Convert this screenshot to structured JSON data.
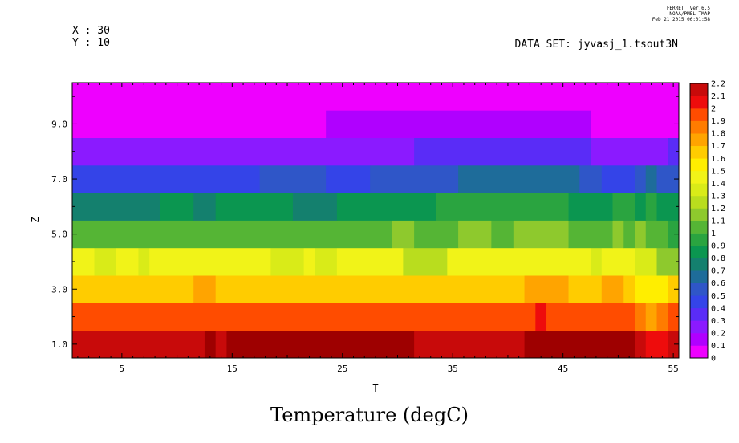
{
  "header": {
    "x_info": "X : 30",
    "y_info": "Y : 10",
    "dataset": "DATA SET: jyvasj_1.tsout3N",
    "ferret_version": "FERRET  Ver.6.5",
    "ferret_org": "NOAA/PMEL TMAP",
    "ferret_date": "Feb 21 2015 06:01:58"
  },
  "chart_data": {
    "type": "heatmap",
    "title": "Temperature (degC)",
    "xlabel": "T",
    "ylabel": "Z",
    "xlim": [
      0.5,
      55.5
    ],
    "ylim": [
      0.5,
      10.5
    ],
    "x_ticks_major": [
      "5",
      "15",
      "25",
      "35",
      "45",
      "55"
    ],
    "y_ticks_major": [
      "1.0",
      "3.0",
      "5.0",
      "7.0",
      "9.0"
    ],
    "colorbar": {
      "labels": [
        "0",
        "0.1",
        "0.2",
        "0.3",
        "0.4",
        "0.5",
        "0.6",
        "0.7",
        "0.8",
        "0.9",
        "1",
        "1.1",
        "1.2",
        "1.3",
        "1.4",
        "1.5",
        "1.6",
        "1.7",
        "1.8",
        "1.9",
        "2",
        "2.1",
        "2.2"
      ],
      "colors": [
        "#ee00ff",
        "#b000ff",
        "#8b1aff",
        "#5a2cf7",
        "#3444e8",
        "#2f56c8",
        "#1e6c9a",
        "#14806e",
        "#0b9650",
        "#2aa440",
        "#55b535",
        "#8ec92d",
        "#b9dd1e",
        "#d9eb18",
        "#f1f318",
        "#ffee00",
        "#ffcc00",
        "#ffa400",
        "#ff7c00",
        "#ff4c00",
        "#ee0c0c",
        "#c80a0a",
        "#9e0000"
      ]
    },
    "rows": [
      {
        "z": 1,
        "segments": [
          [
            0.5,
            12.5,
            2.15
          ],
          [
            12.5,
            13.5,
            2.25
          ],
          [
            13.5,
            14.5,
            2.15
          ],
          [
            14.5,
            31.5,
            2.25
          ],
          [
            31.5,
            41.5,
            2.15
          ],
          [
            41.5,
            51.5,
            2.25
          ],
          [
            51.5,
            52.5,
            2.15
          ],
          [
            52.5,
            54.5,
            2.05
          ],
          [
            54.5,
            55.5,
            2.15
          ]
        ]
      },
      {
        "z": 2,
        "segments": [
          [
            0.5,
            42.5,
            1.95
          ],
          [
            42.5,
            43.5,
            2.05
          ],
          [
            43.5,
            51.5,
            1.95
          ],
          [
            51.5,
            52.5,
            1.85
          ],
          [
            52.5,
            53.5,
            1.75
          ],
          [
            53.5,
            54.5,
            1.85
          ],
          [
            54.5,
            55.5,
            1.95
          ]
        ]
      },
      {
        "z": 3,
        "segments": [
          [
            0.5,
            11.5,
            1.65
          ],
          [
            11.5,
            13.5,
            1.75
          ],
          [
            13.5,
            41.5,
            1.65
          ],
          [
            41.5,
            45.5,
            1.75
          ],
          [
            45.5,
            48.5,
            1.65
          ],
          [
            48.5,
            50.5,
            1.75
          ],
          [
            50.5,
            51.5,
            1.65
          ],
          [
            51.5,
            54.5,
            1.55
          ],
          [
            54.5,
            55.5,
            1.65
          ]
        ]
      },
      {
        "z": 4,
        "segments": [
          [
            0.5,
            2.5,
            1.45
          ],
          [
            2.5,
            4.5,
            1.35
          ],
          [
            4.5,
            6.5,
            1.45
          ],
          [
            6.5,
            7.5,
            1.35
          ],
          [
            7.5,
            18.5,
            1.45
          ],
          [
            18.5,
            21.5,
            1.35
          ],
          [
            21.5,
            22.5,
            1.45
          ],
          [
            22.5,
            24.5,
            1.35
          ],
          [
            24.5,
            30.5,
            1.45
          ],
          [
            30.5,
            34.5,
            1.25
          ],
          [
            34.5,
            47.5,
            1.45
          ],
          [
            47.5,
            48.5,
            1.35
          ],
          [
            48.5,
            51.5,
            1.45
          ],
          [
            51.5,
            53.5,
            1.35
          ],
          [
            53.5,
            55.5,
            1.15
          ]
        ]
      },
      {
        "z": 5,
        "segments": [
          [
            0.5,
            29.5,
            1.05
          ],
          [
            29.5,
            31.5,
            1.15
          ],
          [
            31.5,
            35.5,
            1.05
          ],
          [
            35.5,
            38.5,
            1.15
          ],
          [
            38.5,
            40.5,
            1.05
          ],
          [
            40.5,
            45.5,
            1.15
          ],
          [
            45.5,
            49.5,
            1.05
          ],
          [
            49.5,
            50.5,
            1.15
          ],
          [
            50.5,
            51.5,
            1.05
          ],
          [
            51.5,
            52.5,
            1.15
          ],
          [
            52.5,
            54.5,
            1.05
          ],
          [
            54.5,
            55.5,
            0.95
          ]
        ]
      },
      {
        "z": 6,
        "segments": [
          [
            0.5,
            8.5,
            0.75
          ],
          [
            8.5,
            11.5,
            0.85
          ],
          [
            11.5,
            13.5,
            0.75
          ],
          [
            13.5,
            20.5,
            0.85
          ],
          [
            20.5,
            24.5,
            0.75
          ],
          [
            24.5,
            33.5,
            0.85
          ],
          [
            33.5,
            45.5,
            0.95
          ],
          [
            45.5,
            49.5,
            0.85
          ],
          [
            49.5,
            51.5,
            0.95
          ],
          [
            51.5,
            52.5,
            0.85
          ],
          [
            52.5,
            53.5,
            0.95
          ],
          [
            53.5,
            55.5,
            0.85
          ]
        ]
      },
      {
        "z": 7,
        "segments": [
          [
            0.5,
            17.5,
            0.45
          ],
          [
            17.5,
            23.5,
            0.55
          ],
          [
            23.5,
            27.5,
            0.45
          ],
          [
            27.5,
            35.5,
            0.55
          ],
          [
            35.5,
            46.5,
            0.65
          ],
          [
            46.5,
            48.5,
            0.55
          ],
          [
            48.5,
            51.5,
            0.45
          ],
          [
            51.5,
            52.5,
            0.55
          ],
          [
            52.5,
            53.5,
            0.65
          ],
          [
            53.5,
            55.5,
            0.55
          ]
        ]
      },
      {
        "z": 8,
        "segments": [
          [
            0.5,
            31.5,
            0.25
          ],
          [
            31.5,
            47.5,
            0.35
          ],
          [
            47.5,
            54.5,
            0.25
          ],
          [
            54.5,
            55.5,
            0.35
          ]
        ]
      },
      {
        "z": 9,
        "segments": [
          [
            0.5,
            23.5,
            0.05
          ],
          [
            23.5,
            47.5,
            0.15
          ],
          [
            47.5,
            55.5,
            0.05
          ]
        ]
      },
      {
        "z": 10,
        "segments": [
          [
            0.5,
            55.5,
            0.05
          ]
        ]
      }
    ]
  }
}
